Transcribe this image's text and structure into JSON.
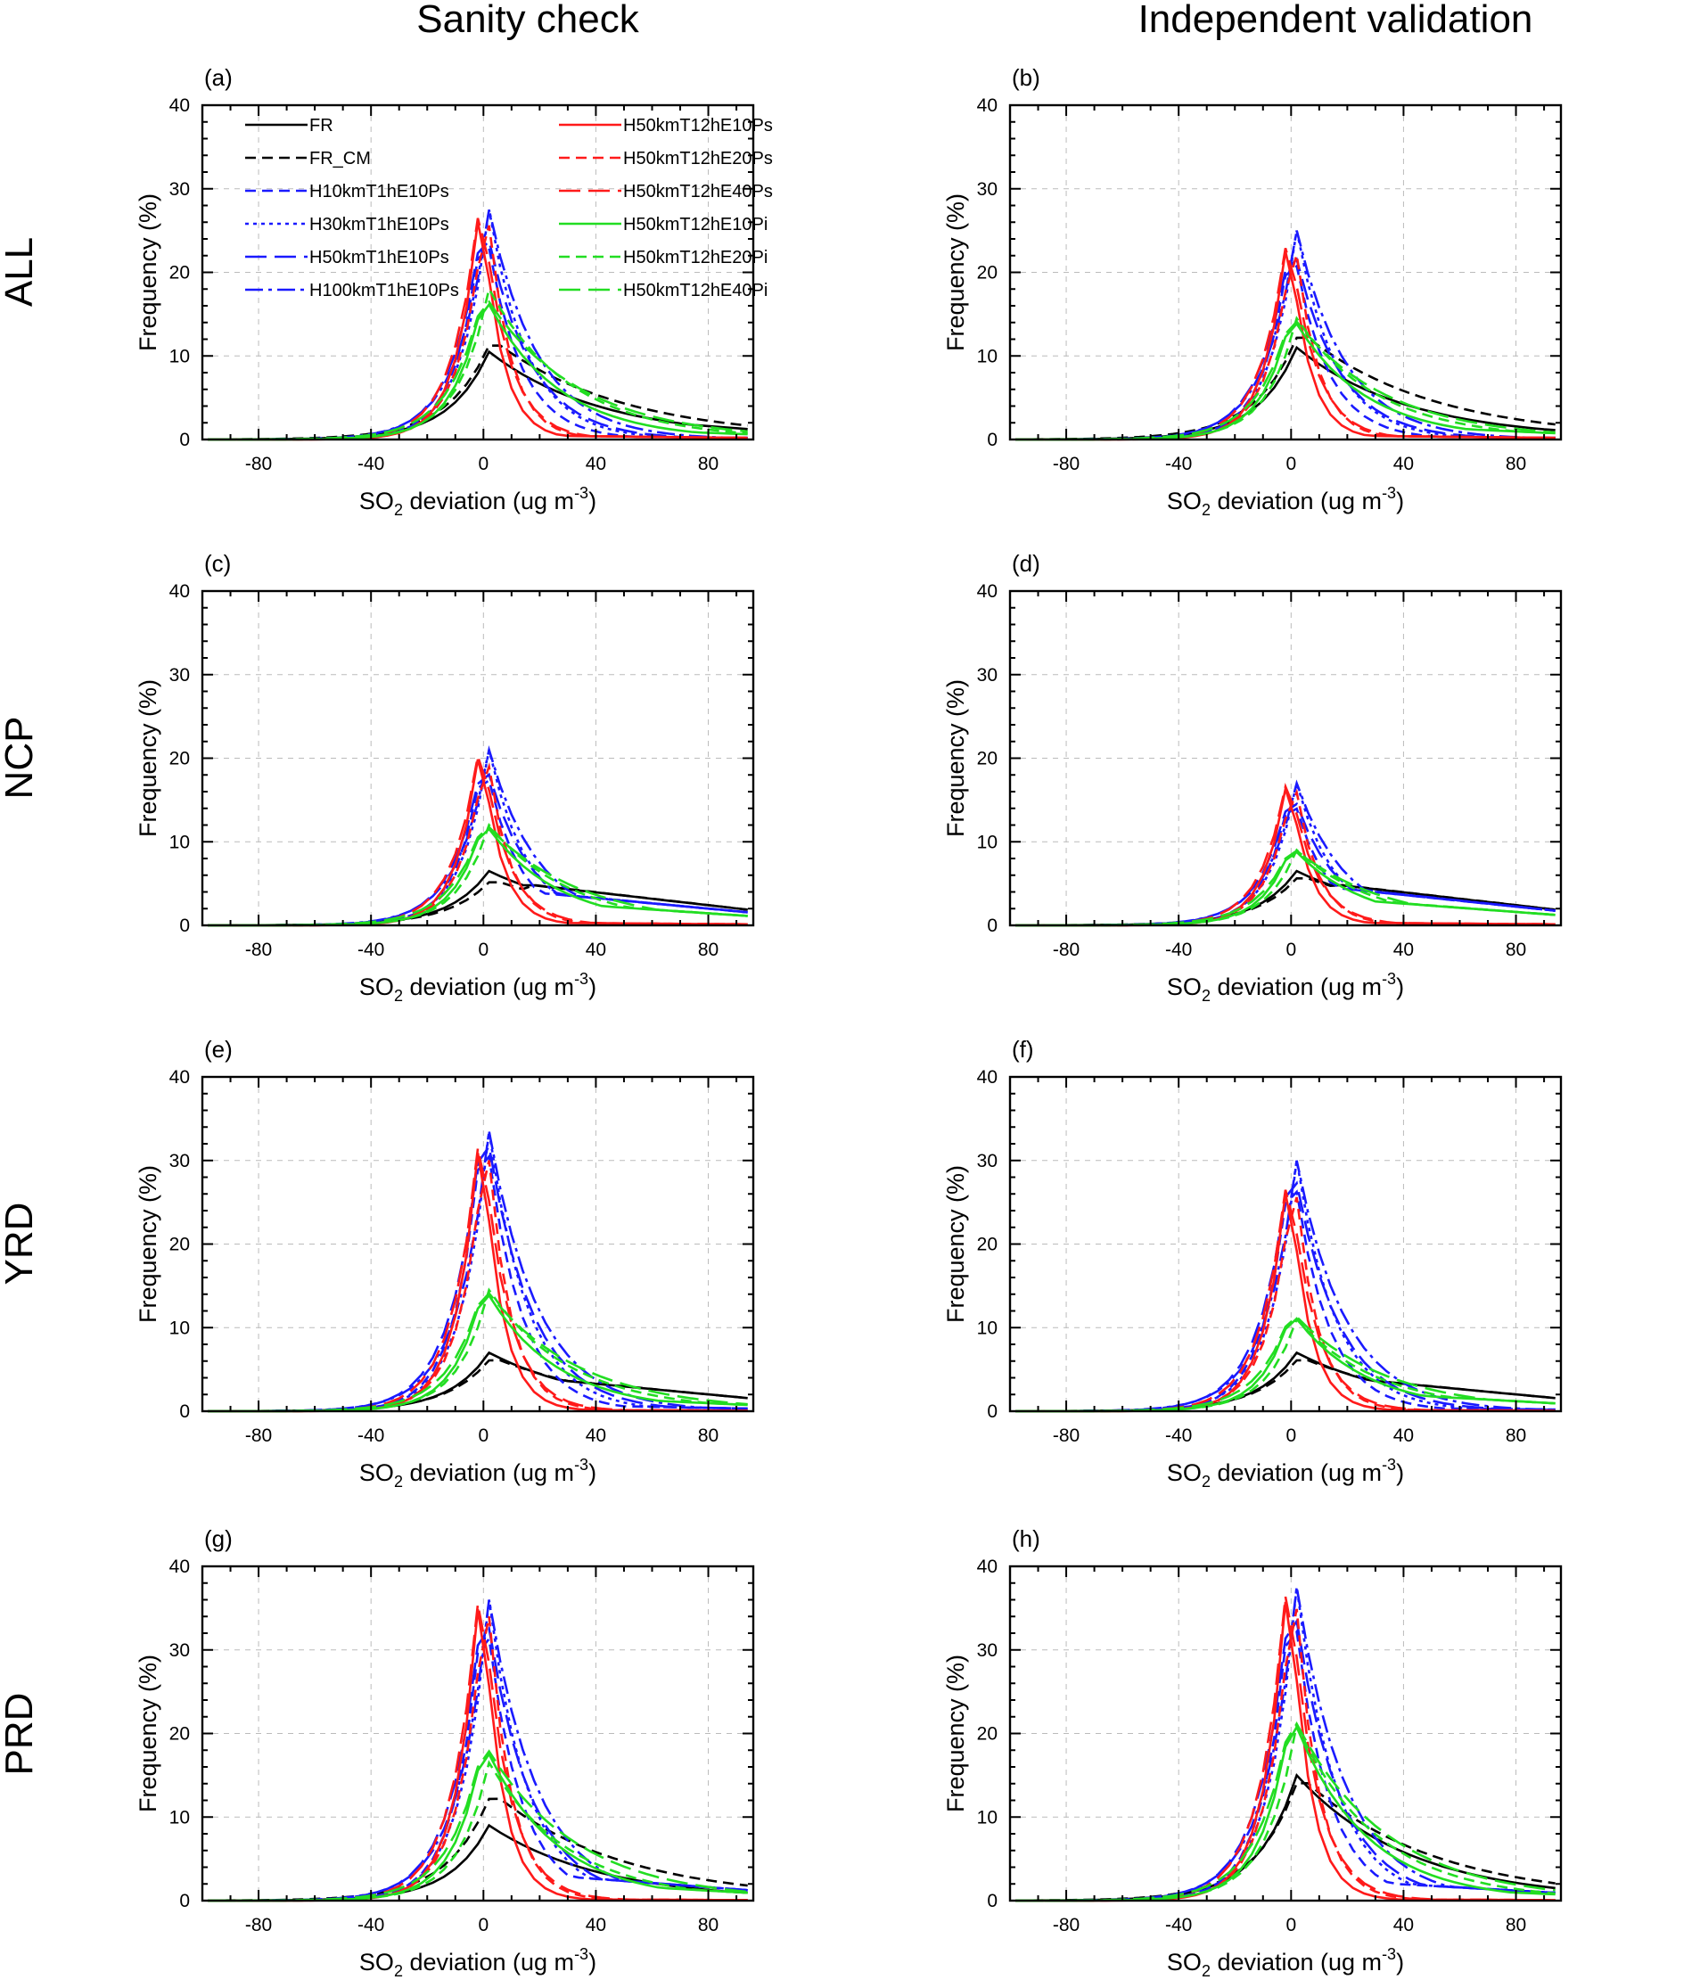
{
  "col_titles": [
    "Sanity check",
    "Independent validation"
  ],
  "row_labels": [
    "ALL",
    "NCP",
    "YRD",
    "PRD"
  ],
  "x_ticks": [
    -80,
    -40,
    0,
    40,
    80
  ],
  "y_ticks": [
    0,
    10,
    20,
    30,
    40
  ],
  "x_axis_label": {
    "prefix": "SO",
    "sub": "2",
    "mid": " deviation (ug m",
    "sup": "-3",
    "suffix": ")"
  },
  "y_axis_label": "Frequency (%)",
  "legend": [
    {
      "label": "FR",
      "color": "#000000",
      "style": "solid"
    },
    {
      "label": "FR_CM",
      "color": "#000000",
      "style": "dash"
    },
    {
      "label": "H10kmT1hE10Ps",
      "color": "#1a1aff",
      "style": "dash"
    },
    {
      "label": "H30kmT1hE10Ps",
      "color": "#1a1aff",
      "style": "dot"
    },
    {
      "label": "H50kmT1hE10Ps",
      "color": "#1a1aff",
      "style": "longdash"
    },
    {
      "label": "H100kmT1hE10Ps",
      "color": "#1a1aff",
      "style": "dashdot"
    },
    {
      "label": "H50kmT12hE10Ps",
      "color": "#ff1a1a",
      "style": "solid"
    },
    {
      "label": "H50kmT12hE20Ps",
      "color": "#ff1a1a",
      "style": "dash"
    },
    {
      "label": "H50kmT12hE40Ps",
      "color": "#ff1a1a",
      "style": "longdash"
    },
    {
      "label": "H50kmT12hE10Pi",
      "color": "#22dd22",
      "style": "solid"
    },
    {
      "label": "H50kmT12hE20Pi",
      "color": "#22dd22",
      "style": "dash"
    },
    {
      "label": "H50kmT12hE40Pi",
      "color": "#22dd22",
      "style": "longdash"
    }
  ],
  "chart_data": [
    {
      "panel": "(a)",
      "type": "line",
      "column": "Sanity check",
      "region": "ALL",
      "xlim": [
        -100,
        96
      ],
      "ylim": [
        0,
        40
      ],
      "xlabel": "SO2 deviation (ug m-3)",
      "ylabel": "Frequency (%)",
      "peaks": {
        "black": [
          10.5,
          12
        ],
        "blue": [
          27,
          27.5
        ],
        "red": [
          29.5,
          29
        ],
        "green": [
          17.5,
          18
        ]
      },
      "tails": {
        "black": 2.0,
        "blue": 0.3,
        "red": 0.3,
        "green": 1.0
      }
    },
    {
      "panel": "(b)",
      "type": "line",
      "column": "Independent validation",
      "region": "ALL",
      "xlim": [
        -100,
        96
      ],
      "ylim": [
        0,
        40
      ],
      "xlabel": "SO2 deviation (ug m-3)",
      "ylabel": "Frequency (%)",
      "peaks": {
        "black": [
          11,
          13
        ],
        "blue": [
          24.5,
          25
        ],
        "red": [
          25.5,
          25
        ],
        "green": [
          15,
          14.5
        ]
      },
      "tails": {
        "black": 1.8,
        "blue": 0.3,
        "red": 0.3,
        "green": 1.2
      }
    },
    {
      "panel": "(c)",
      "type": "line",
      "column": "Sanity check",
      "region": "NCP",
      "xlim": [
        -100,
        96
      ],
      "ylim": [
        0,
        40
      ],
      "xlabel": "SO2 deviation (ug m-3)",
      "ylabel": "Frequency (%)",
      "peaks": {
        "black": [
          6.5,
          5.5
        ],
        "blue": [
          20.5,
          21
        ],
        "red": [
          22.5,
          21.5
        ],
        "green": [
          12.5,
          12
        ]
      },
      "tails": {
        "black": 3.0,
        "blue": 2.5,
        "red": 0.2,
        "green": 1.8
      }
    },
    {
      "panel": "(d)",
      "type": "line",
      "column": "Independent validation",
      "region": "NCP",
      "xlim": [
        -100,
        96
      ],
      "ylim": [
        0,
        40
      ],
      "xlabel": "SO2 deviation (ug m-3)",
      "ylabel": "Frequency (%)",
      "peaks": {
        "black": [
          6.5,
          6
        ],
        "blue": [
          16.5,
          17
        ],
        "red": [
          18.5,
          18
        ],
        "green": [
          9.5,
          9
        ]
      },
      "tails": {
        "black": 3.0,
        "blue": 2.8,
        "red": 0.2,
        "green": 2.0
      }
    },
    {
      "panel": "(e)",
      "type": "line",
      "column": "Sanity check",
      "region": "YRD",
      "xlim": [
        -100,
        96
      ],
      "ylim": [
        0,
        40
      ],
      "xlabel": "SO2 deviation (ug m-3)",
      "ylabel": "Frequency (%)",
      "peaks": {
        "black": [
          7,
          6.5
        ],
        "blue": [
          36,
          33.5
        ],
        "red": [
          35,
          34
        ],
        "green": [
          15,
          14.5
        ]
      },
      "tails": {
        "black": 2.5,
        "blue": 0.5,
        "red": 0.1,
        "green": 1.2
      }
    },
    {
      "panel": "(f)",
      "type": "line",
      "column": "Independent validation",
      "region": "YRD",
      "xlim": [
        -100,
        96
      ],
      "ylim": [
        0,
        40
      ],
      "xlabel": "SO2 deviation (ug m-3)",
      "ylabel": "Frequency (%)",
      "peaks": {
        "black": [
          7,
          6.5
        ],
        "blue": [
          31,
          30
        ],
        "red": [
          29.5,
          29
        ],
        "green": [
          12,
          11
        ]
      },
      "tails": {
        "black": 2.5,
        "blue": 0.3,
        "red": 0.1,
        "green": 1.5
      }
    },
    {
      "panel": "(g)",
      "type": "line",
      "column": "Sanity check",
      "region": "PRD",
      "xlim": [
        -100,
        96
      ],
      "ylim": [
        0,
        40
      ],
      "xlabel": "SO2 deviation (ug m-3)",
      "ylabel": "Frequency (%)",
      "peaks": {
        "black": [
          9,
          13
        ],
        "blue": [
          37,
          36
        ],
        "red": [
          39.5,
          38.5
        ],
        "green": [
          19,
          16.5
        ]
      },
      "tails": {
        "black": 1.5,
        "blue": 2.0,
        "red": 0.1,
        "green": 1.5
      }
    },
    {
      "panel": "(h)",
      "type": "line",
      "column": "Independent validation",
      "region": "PRD",
      "xlim": [
        -100,
        96
      ],
      "ylim": [
        0,
        40
      ],
      "xlabel": "SO2 deviation (ug m-3)",
      "ylabel": "Frequency (%)",
      "peaks": {
        "black": [
          15,
          15
        ],
        "blue": [
          38,
          37.5
        ],
        "red": [
          40.5,
          39.5
        ],
        "green": [
          22.5,
          21
        ]
      },
      "tails": {
        "black": 2.0,
        "blue": 1.5,
        "red": 0.1,
        "green": 1.2
      }
    }
  ]
}
